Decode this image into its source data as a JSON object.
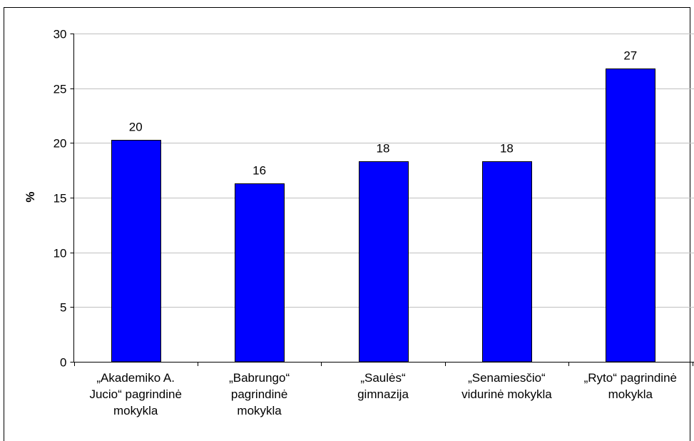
{
  "chart_data": {
    "type": "bar",
    "categories": [
      [
        "„Akademiko A.",
        "Jucio“ pagrindinė",
        "mokykla"
      ],
      [
        "„Babrungo“",
        "pagrindinė",
        "mokykla"
      ],
      [
        "„Saulės“",
        "gimnazija"
      ],
      [
        "„Senamiesčio“",
        "vidurinė mokykla"
      ],
      [
        "„Ryto“ pagrindinė",
        "mokykla"
      ]
    ],
    "values": [
      20.3,
      16.3,
      18.3,
      18.3,
      26.8
    ],
    "data_labels": [
      "20",
      "16",
      "18",
      "18",
      "27"
    ],
    "ylabel": "%",
    "ylim": [
      0,
      30
    ],
    "yticks": [
      0,
      5,
      10,
      15,
      20,
      25,
      30
    ],
    "ytick_labels": [
      "0",
      "5",
      "10",
      "15",
      "20",
      "25",
      "30"
    ],
    "grid": true,
    "bar_color": "#0000ff"
  }
}
